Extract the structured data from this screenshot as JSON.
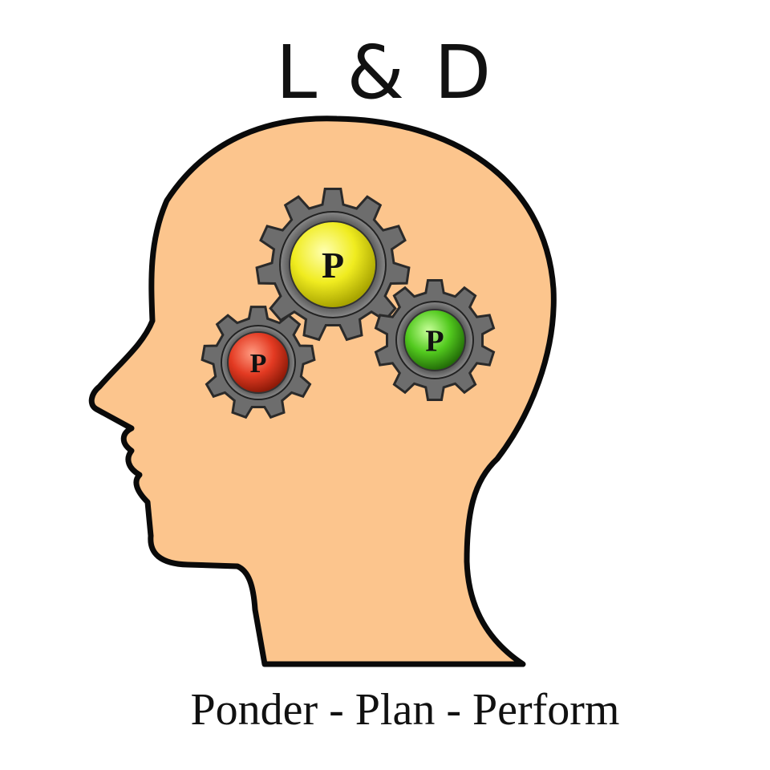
{
  "title": "L & D",
  "tagline": "Ponder - Plan - Perform",
  "gears": [
    {
      "name": "red-gear",
      "letter": "P",
      "color": "#e33a22"
    },
    {
      "name": "yellow-gear",
      "letter": "P",
      "color": "#f0ec20"
    },
    {
      "name": "green-gear",
      "letter": "P",
      "color": "#52c91e"
    }
  ],
  "colors": {
    "head_fill": "#fcc58d",
    "head_outline": "#0a0a0a",
    "gear_body": "#6d6d6d"
  },
  "icons": [
    "head-silhouette-icon",
    "gear-icon"
  ]
}
